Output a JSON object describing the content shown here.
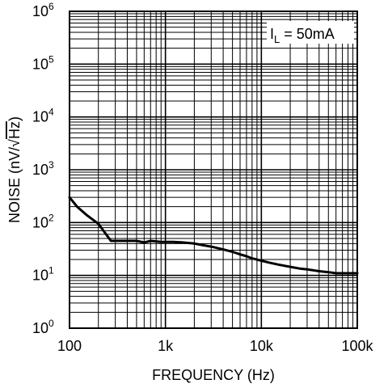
{
  "chart_data": {
    "type": "line",
    "x_scale": "log",
    "y_scale": "log",
    "xlim": [
      100,
      100000
    ],
    "ylim": [
      1,
      1000000
    ],
    "grid": true,
    "xlabel": "FREQUENCY (Hz)",
    "ylabel_prefix": "NOISE (nV/",
    "ylabel_radical": "Hz",
    "ylabel_suffix": ")",
    "x_ticks": [
      {
        "value": 100,
        "label": "100"
      },
      {
        "value": 1000,
        "label": "1k"
      },
      {
        "value": 10000,
        "label": "10k"
      },
      {
        "value": 100000,
        "label": "100k"
      }
    ],
    "y_ticks": [
      {
        "value": 1,
        "base": "10",
        "exp": "0"
      },
      {
        "value": 10,
        "base": "10",
        "exp": "1"
      },
      {
        "value": 100,
        "base": "10",
        "exp": "2"
      },
      {
        "value": 1000,
        "base": "10",
        "exp": "3"
      },
      {
        "value": 10000,
        "base": "10",
        "exp": "4"
      },
      {
        "value": 100000,
        "base": "10",
        "exp": "5"
      },
      {
        "value": 1000000,
        "base": "10",
        "exp": "6"
      }
    ],
    "annotation": {
      "main": "I",
      "sub": "L",
      "rest": " = 50mA",
      "position": "top-right"
    },
    "series": [
      {
        "x": [
          100,
          120,
          150,
          200,
          270,
          300,
          400,
          500,
          600,
          700,
          800,
          900,
          1000,
          1200,
          1500,
          2000,
          2500,
          3000,
          4000,
          5000,
          6000,
          7000,
          8000,
          10000,
          12000,
          15000,
          20000,
          25000,
          30000,
          40000,
          50000,
          60000,
          70000,
          80000,
          100000
        ],
        "y": [
          300,
          200,
          140,
          95,
          45,
          45,
          45,
          45,
          42,
          45,
          44,
          43,
          43,
          43,
          42,
          40,
          37,
          35,
          31,
          28,
          25,
          23,
          21,
          19,
          17.5,
          16,
          14.5,
          13.5,
          13,
          12,
          11.5,
          11,
          11,
          11,
          11
        ]
      }
    ]
  }
}
